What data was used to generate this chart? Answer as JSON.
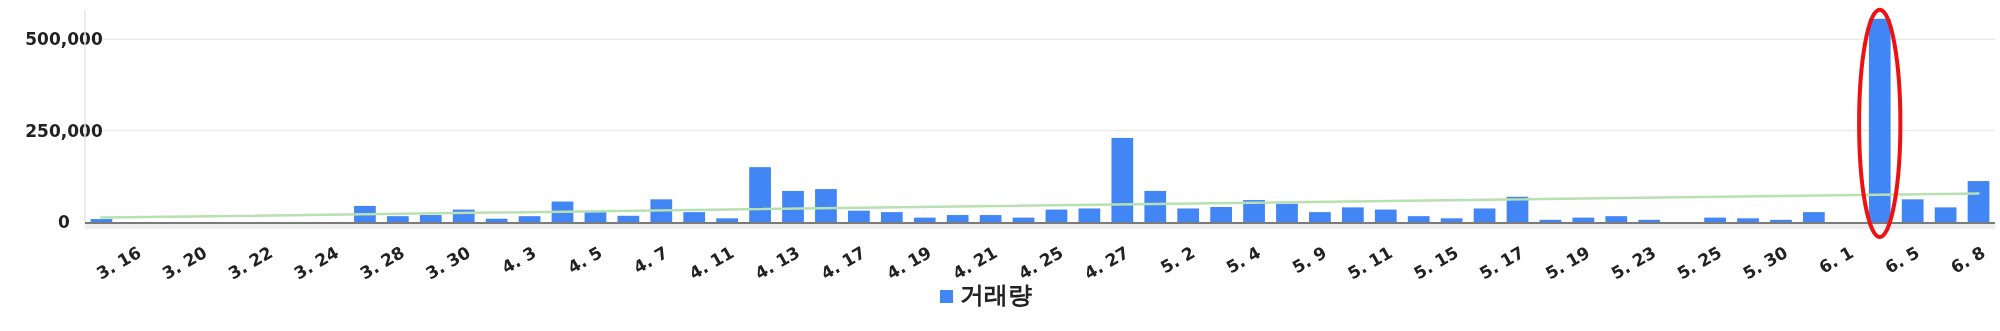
{
  "chart_data": {
    "type": "bar",
    "categories": [
      null,
      "3. 16",
      null,
      "3. 20",
      null,
      "3. 22",
      null,
      "3. 24",
      null,
      "3. 28",
      null,
      "3. 30",
      null,
      "4. 3",
      null,
      "4. 5",
      null,
      "4. 7",
      null,
      "4. 11",
      null,
      "4. 13",
      null,
      "4. 17",
      null,
      "4. 19",
      null,
      "4. 21",
      null,
      "4. 25",
      null,
      "4. 27",
      null,
      "5. 2",
      null,
      "5. 4",
      null,
      "5. 9",
      null,
      "5. 11",
      null,
      "5. 15",
      null,
      "5. 17",
      null,
      "5. 19",
      null,
      "5. 23",
      null,
      "5. 25",
      null,
      "5. 30",
      null,
      "6. 1",
      null,
      "6. 5",
      null,
      "6. 8"
    ],
    "series": [
      {
        "name": "거래량",
        "color": "#4285f4",
        "values": [
          8000,
          0,
          0,
          0,
          0,
          0,
          0,
          0,
          44000,
          16000,
          19000,
          34000,
          9000,
          16000,
          56000,
          27000,
          17000,
          62000,
          27000,
          10000,
          150000,
          85000,
          90000,
          31000,
          27000,
          12000,
          19000,
          19000,
          12000,
          34000,
          37000,
          230000,
          85000,
          37000,
          41000,
          60000,
          50000,
          27000,
          40000,
          34000,
          16000,
          10000,
          37000,
          69000,
          6000,
          12000,
          16000,
          6000,
          0,
          12000,
          10000,
          6000,
          27000,
          0,
          556000,
          62000,
          40000,
          112000
        ]
      },
      {
        "type": "line",
        "color": "#b7e1b0",
        "values": [
          12000,
          null,
          null,
          null,
          null,
          null,
          null,
          null,
          null,
          null,
          null,
          null,
          null,
          null,
          null,
          null,
          null,
          null,
          null,
          null,
          null,
          null,
          null,
          null,
          null,
          null,
          null,
          null,
          null,
          null,
          null,
          null,
          null,
          null,
          null,
          null,
          null,
          null,
          null,
          null,
          null,
          null,
          null,
          null,
          null,
          null,
          null,
          null,
          null,
          null,
          null,
          null,
          null,
          null,
          null,
          null,
          null,
          78000
        ]
      }
    ],
    "ylim": [
      0,
      580000
    ],
    "yticks": [
      0,
      {
        "value": 250000,
        "label": "250,000"
      },
      {
        "value": 500000,
        "label": "500,000"
      }
    ],
    "grid": "y",
    "legend": "bottom"
  }
}
